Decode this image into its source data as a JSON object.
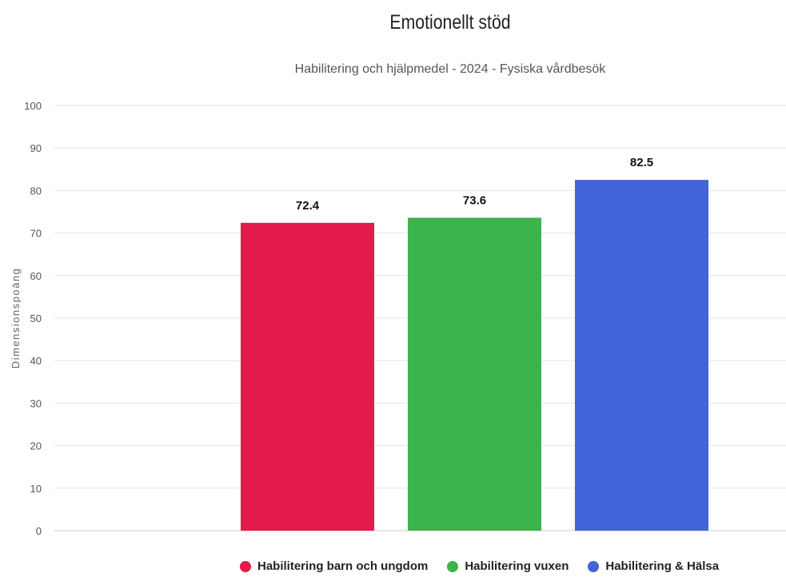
{
  "chart_data": {
    "type": "bar",
    "title": "Emotionellt stöd",
    "subtitle": "Habilitering och hjälpmedel - 2024 - Fysiska vårdbesök",
    "xlabel": "",
    "ylabel": "Dimensionspoäng",
    "ylim": [
      0,
      100
    ],
    "yticks": [
      "0",
      "10",
      "20",
      "30",
      "40",
      "50",
      "60",
      "70",
      "80",
      "90",
      "100"
    ],
    "grid": true,
    "legend_position": "bottom",
    "series": [
      {
        "name": "Habilitering barn och ungdom",
        "value": 72.4,
        "label": "72.4",
        "color": "#e41a4a"
      },
      {
        "name": "Habilitering vuxen",
        "value": 73.6,
        "label": "73.6",
        "color": "#3cb44b"
      },
      {
        "name": "Habilitering & Hälsa",
        "value": 82.5,
        "label": "82.5",
        "color": "#4363d8"
      }
    ]
  }
}
